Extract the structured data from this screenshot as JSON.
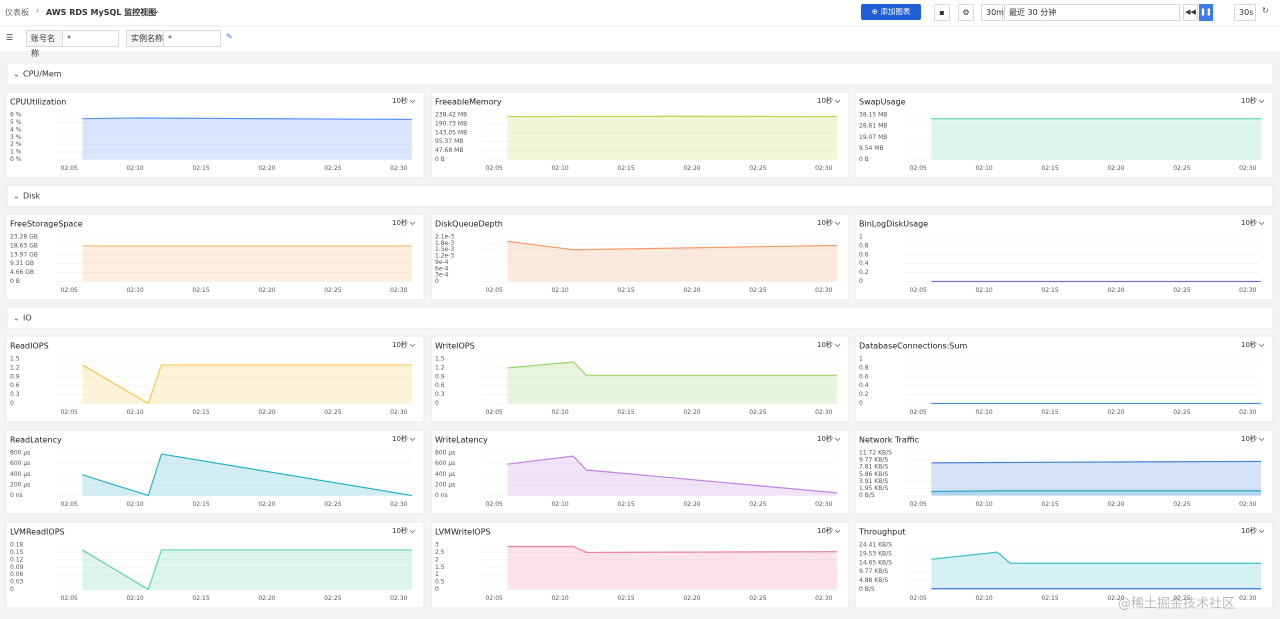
{
  "header": {
    "breadcrumb": "仪表板",
    "title": "AWS RDS MySQL 监控视图",
    "add_button": "添加图表",
    "range_short": "30m",
    "range": "最近 30 分钟",
    "refresh": "30s"
  },
  "filters": [
    {
      "label": "账号名称",
      "value": "*"
    },
    {
      "label": "实例名称",
      "value": "*"
    }
  ],
  "sections": [
    "CPU/Mem",
    "Disk",
    "IO"
  ],
  "watermark": "@稀土掘金技术社区",
  "chart_data": [
    {
      "type": "area",
      "title": "CPUUtilization",
      "interval": "10秒",
      "xlim": [
        "02:04",
        "02:31"
      ],
      "xticks": [
        "02:05",
        "02:10",
        "02:15",
        "02:20",
        "02:25",
        "02:30"
      ],
      "ylim": [
        0,
        6
      ],
      "yticks": [
        {
          "value": 6,
          "label": "6 %"
        },
        {
          "value": 5,
          "label": "5 %"
        },
        {
          "value": 4,
          "label": "4 %"
        },
        {
          "value": 3,
          "label": "3 %"
        },
        {
          "value": 2,
          "label": "2 %"
        },
        {
          "value": 1,
          "label": "1 %"
        },
        {
          "value": 0,
          "label": "0 %"
        }
      ],
      "series": [
        {
          "color": "#5b8ff9",
          "x": [
            "02:06",
            "02:10",
            "02:31"
          ],
          "values": [
            5.5,
            5.6,
            5.4
          ]
        }
      ]
    },
    {
      "type": "area",
      "title": "FreeableMemory",
      "interval": "10秒",
      "xlim": [
        "02:04",
        "02:31"
      ],
      "xticks": [
        "02:05",
        "02:10",
        "02:15",
        "02:20",
        "02:25",
        "02:30"
      ],
      "ylim": [
        0,
        238.42
      ],
      "yticks": [
        {
          "value": 238.42,
          "label": "238.42 MB"
        },
        {
          "value": 190.73,
          "label": "190.73 MB"
        },
        {
          "value": 143.05,
          "label": "143.05 MB"
        },
        {
          "value": 95.37,
          "label": "95.37 MB"
        },
        {
          "value": 47.68,
          "label": "47.68 MB"
        },
        {
          "value": 0,
          "label": "0 B"
        }
      ],
      "series": [
        {
          "color": "#c5d54a",
          "x": [
            "02:06",
            "02:18",
            "02:31"
          ],
          "values": [
            230,
            231,
            230
          ]
        }
      ]
    },
    {
      "type": "area",
      "title": "SwapUsage",
      "interval": "10秒",
      "xlim": [
        "02:04",
        "02:31"
      ],
      "xticks": [
        "02:05",
        "02:10",
        "02:15",
        "02:20",
        "02:25",
        "02:30"
      ],
      "ylim": [
        0,
        38.15
      ],
      "yticks": [
        {
          "value": 38.15,
          "label": "38.15 MB"
        },
        {
          "value": 28.61,
          "label": "28.61 MB"
        },
        {
          "value": 19.07,
          "label": "19.07 MB"
        },
        {
          "value": 9.54,
          "label": "9.54 MB"
        },
        {
          "value": 0,
          "label": "0 B"
        }
      ],
      "series": [
        {
          "color": "#5ad8a6",
          "x": [
            "02:06",
            "02:31"
          ],
          "values": [
            35,
            35
          ]
        }
      ]
    },
    {
      "type": "area",
      "title": "FreeStorageSpace",
      "interval": "10秒",
      "xlim": [
        "02:04",
        "02:31"
      ],
      "xticks": [
        "02:05",
        "02:10",
        "02:15",
        "02:20",
        "02:25",
        "02:30"
      ],
      "ylim": [
        0,
        23.28
      ],
      "yticks": [
        {
          "value": 23.28,
          "label": "23.28 GB"
        },
        {
          "value": 18.63,
          "label": "18.63 GB"
        },
        {
          "value": 13.97,
          "label": "13.97 GB"
        },
        {
          "value": 9.31,
          "label": "9.31 GB"
        },
        {
          "value": 4.66,
          "label": "4.66 GB"
        },
        {
          "value": 0,
          "label": "0 B"
        }
      ],
      "series": [
        {
          "color": "#f7b26b",
          "x": [
            "02:06",
            "02:31"
          ],
          "values": [
            18.6,
            18.6
          ]
        }
      ]
    },
    {
      "type": "area",
      "title": "DiskQueueDepth",
      "interval": "10秒",
      "xlim": [
        "02:04",
        "02:31"
      ],
      "xticks": [
        "02:05",
        "02:10",
        "02:15",
        "02:20",
        "02:25",
        "02:30"
      ],
      "ylim": [
        0,
        0.0021
      ],
      "yticks": [
        {
          "value": 0.0021,
          "label": "2.1e-3"
        },
        {
          "value": 0.0018,
          "label": "1.8e-3"
        },
        {
          "value": 0.0015,
          "label": "1.5e-3"
        },
        {
          "value": 0.0012,
          "label": "1.2e-3"
        },
        {
          "value": 0.0009,
          "label": "9e-4"
        },
        {
          "value": 0.0006,
          "label": "6e-4"
        },
        {
          "value": 0.0003,
          "label": "3e-4"
        },
        0
      ],
      "series": [
        {
          "color": "#f29b6b",
          "x": [
            "02:06",
            "02:11",
            "02:31"
          ],
          "values": [
            0.0019,
            0.0015,
            0.0017
          ]
        }
      ]
    },
    {
      "type": "area",
      "title": "BinLogDiskUsage",
      "interval": "10秒",
      "xlim": [
        "02:04",
        "02:31"
      ],
      "xticks": [
        "02:05",
        "02:10",
        "02:15",
        "02:20",
        "02:25",
        "02:30"
      ],
      "ylim": [
        0,
        1
      ],
      "yticks": [
        1,
        0.8,
        0.6,
        0.4,
        0.2,
        0
      ],
      "series": [
        {
          "color": "#7b6fd0",
          "x": [
            "02:06",
            "02:31"
          ],
          "values": [
            0,
            0
          ]
        }
      ]
    },
    {
      "type": "area",
      "title": "ReadIOPS",
      "interval": "10秒",
      "xlim": [
        "02:04",
        "02:31"
      ],
      "xticks": [
        "02:05",
        "02:10",
        "02:15",
        "02:20",
        "02:25",
        "02:30"
      ],
      "ylim": [
        0,
        1.5
      ],
      "yticks": [
        1.5,
        1.2,
        0.9,
        0.6,
        0.3,
        0
      ],
      "series": [
        {
          "color": "#f6c94e",
          "x": [
            "02:06",
            "02:11",
            "02:12",
            "02:31"
          ],
          "values": [
            1.3,
            0,
            1.3,
            1.3
          ]
        }
      ]
    },
    {
      "type": "area",
      "title": "WriteIOPS",
      "interval": "10秒",
      "xlim": [
        "02:04",
        "02:31"
      ],
      "xticks": [
        "02:05",
        "02:10",
        "02:15",
        "02:20",
        "02:25",
        "02:30"
      ],
      "ylim": [
        0,
        1.5
      ],
      "yticks": [
        1.5,
        1.2,
        0.9,
        0.6,
        0.3,
        0
      ],
      "series": [
        {
          "color": "#9bd36b",
          "x": [
            "02:06",
            "02:11",
            "02:12",
            "02:31"
          ],
          "values": [
            1.2,
            1.4,
            0.95,
            0.95
          ]
        }
      ]
    },
    {
      "type": "area",
      "title": "DatabaseConnections:Sum",
      "interval": "10秒",
      "xlim": [
        "02:04",
        "02:31"
      ],
      "xticks": [
        "02:05",
        "02:10",
        "02:15",
        "02:20",
        "02:25",
        "02:30"
      ],
      "ylim": [
        0,
        1
      ],
      "yticks": [
        1,
        0.8,
        0.6,
        0.4,
        0.2,
        0
      ],
      "series": [
        {
          "color": "#4a8ef0",
          "x": [
            "02:06",
            "02:31"
          ],
          "values": [
            0,
            0
          ]
        }
      ]
    },
    {
      "type": "area",
      "title": "ReadLatency",
      "interval": "10秒",
      "xlim": [
        "02:04",
        "02:31"
      ],
      "xticks": [
        "02:05",
        "02:10",
        "02:15",
        "02:20",
        "02:25",
        "02:30"
      ],
      "ylim": [
        0,
        800
      ],
      "yticks": [
        {
          "value": 800,
          "label": "800 µs"
        },
        {
          "value": 600,
          "label": "600 µs"
        },
        {
          "value": 400,
          "label": "400 µs"
        },
        {
          "value": 200,
          "label": "200 µs"
        },
        {
          "value": 0,
          "label": "0 ns"
        }
      ],
      "series": [
        {
          "color": "#2bb3c8",
          "x": [
            "02:06",
            "02:11",
            "02:12",
            "02:31"
          ],
          "values": [
            390,
            0,
            780,
            0
          ]
        }
      ]
    },
    {
      "type": "area",
      "title": "WriteLatency",
      "interval": "10秒",
      "xlim": [
        "02:04",
        "02:31"
      ],
      "xticks": [
        "02:05",
        "02:10",
        "02:15",
        "02:20",
        "02:25",
        "02:30"
      ],
      "ylim": [
        0,
        800
      ],
      "yticks": [
        {
          "value": 800,
          "label": "800 µs"
        },
        {
          "value": 600,
          "label": "600 µs"
        },
        {
          "value": 400,
          "label": "400 µs"
        },
        {
          "value": 200,
          "label": "200 µs"
        },
        {
          "value": 0,
          "label": "0 ns"
        }
      ],
      "series": [
        {
          "color": "#c084e0",
          "x": [
            "02:06",
            "02:11",
            "02:12",
            "02:31"
          ],
          "values": [
            590,
            740,
            480,
            50
          ]
        }
      ]
    },
    {
      "type": "area",
      "title": "Network Traffic",
      "interval": "10秒",
      "xlim": [
        "02:04",
        "02:31"
      ],
      "xticks": [
        "02:05",
        "02:10",
        "02:15",
        "02:20",
        "02:25",
        "02:30"
      ],
      "ylim": [
        0,
        11.72
      ],
      "yticks": [
        {
          "value": 11.72,
          "label": "11.72 KB/S"
        },
        {
          "value": 9.77,
          "label": "9.77 KB/S"
        },
        {
          "value": 7.81,
          "label": "7.81 KB/S"
        },
        {
          "value": 5.86,
          "label": "5.86 KB/S"
        },
        {
          "value": 3.91,
          "label": "3.91 KB/S"
        },
        {
          "value": 1.95,
          "label": "1.95 KB/S"
        },
        {
          "value": 0,
          "label": "0 B/S"
        }
      ],
      "series": [
        {
          "color": "#4a7fe0",
          "x": [
            "02:06",
            "02:11",
            "02:31"
          ],
          "values": [
            9.0,
            9.1,
            9.4
          ]
        },
        {
          "color": "#2fa6c9",
          "x": [
            "02:06",
            "02:11",
            "02:31"
          ],
          "values": [
            1.1,
            1.3,
            1.3
          ]
        }
      ]
    },
    {
      "type": "area",
      "title": "LVMReadIOPS",
      "interval": "10秒",
      "xlim": [
        "02:04",
        "02:31"
      ],
      "xticks": [
        "02:05",
        "02:10",
        "02:15",
        "02:20",
        "02:25",
        "02:30"
      ],
      "ylim": [
        0,
        0.18
      ],
      "yticks": [
        0.18,
        0.15,
        0.12,
        0.09,
        0.06,
        0.03,
        0
      ],
      "series": [
        {
          "color": "#5fd6a5",
          "x": [
            "02:06",
            "02:11",
            "02:12",
            "02:31"
          ],
          "values": [
            0.16,
            0,
            0.16,
            0.16
          ]
        }
      ]
    },
    {
      "type": "area",
      "title": "LVMWriteIOPS",
      "interval": "10秒",
      "xlim": [
        "02:04",
        "02:31"
      ],
      "xticks": [
        "02:05",
        "02:10",
        "02:15",
        "02:20",
        "02:25",
        "02:30"
      ],
      "ylim": [
        0,
        3
      ],
      "yticks": [
        3,
        2.5,
        2,
        1.5,
        1,
        0.5,
        0
      ],
      "series": [
        {
          "color": "#f07fa4",
          "x": [
            "02:06",
            "02:11",
            "02:12",
            "02:31"
          ],
          "values": [
            2.9,
            2.9,
            2.5,
            2.55
          ]
        }
      ]
    },
    {
      "type": "area",
      "title": "Throughput",
      "interval": "10秒",
      "xlim": [
        "02:04",
        "02:31"
      ],
      "xticks": [
        "02:05",
        "02:10",
        "02:15",
        "02:20",
        "02:25",
        "02:30"
      ],
      "ylim": [
        0,
        24.41
      ],
      "yticks": [
        {
          "value": 24.41,
          "label": "24.41 KB/S"
        },
        {
          "value": 19.53,
          "label": "19.53 KB/S"
        },
        {
          "value": 14.65,
          "label": "14.65 KB/S"
        },
        {
          "value": 9.77,
          "label": "9.77 KB/S"
        },
        {
          "value": 4.88,
          "label": "4.88 KB/S"
        },
        {
          "value": 0,
          "label": "0 B/S"
        }
      ],
      "series": [
        {
          "color": "#3fc1c9",
          "x": [
            "02:06",
            "02:11",
            "02:12",
            "02:31"
          ],
          "values": [
            16.6,
            20.5,
            14.4,
            14.4
          ]
        },
        {
          "color": "#4a7fe0",
          "x": [
            "02:06",
            "02:31"
          ],
          "values": [
            0.5,
            0.5
          ]
        }
      ]
    }
  ]
}
